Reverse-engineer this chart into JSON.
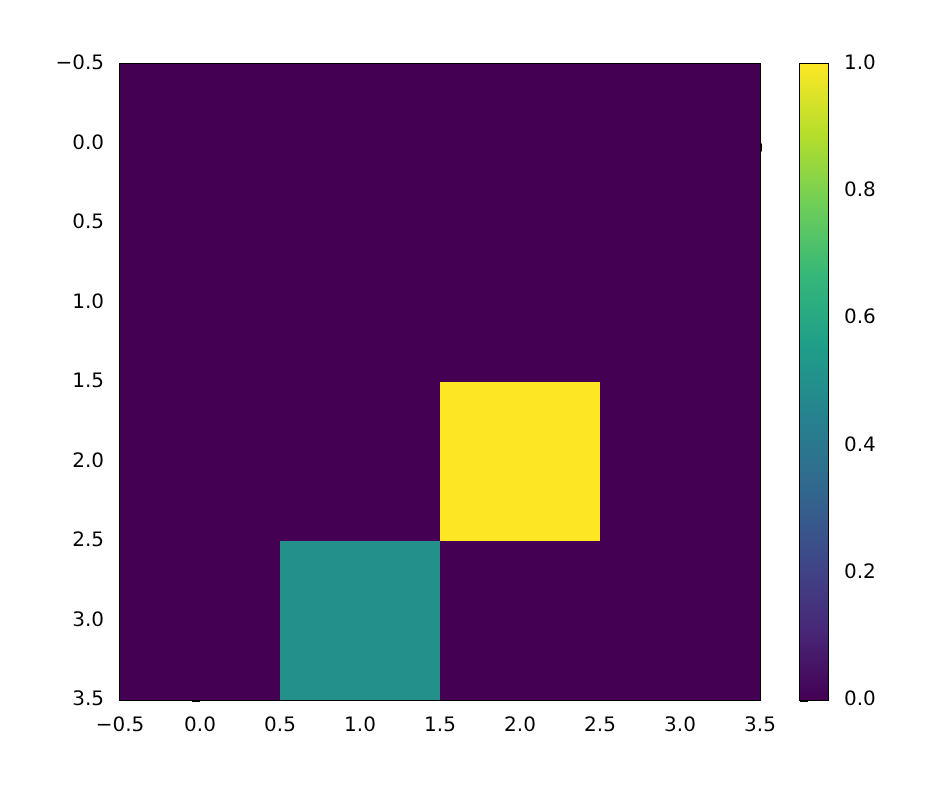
{
  "chart_data": {
    "type": "heatmap",
    "cells": [
      [
        0,
        0,
        0,
        0
      ],
      [
        0,
        0,
        0,
        0
      ],
      [
        0,
        0,
        1,
        0
      ],
      [
        0,
        0.5,
        0,
        0
      ]
    ],
    "xlim": [
      -0.5,
      3.5
    ],
    "xticks": [
      {
        "value": -0.5,
        "label": "−0.5"
      },
      {
        "value": 0,
        "label": "0.0"
      },
      {
        "value": 0.5,
        "label": "0.5"
      },
      {
        "value": 1,
        "label": "1.0"
      },
      {
        "value": 1.5,
        "label": "1.5"
      },
      {
        "value": 2,
        "label": "2.0"
      },
      {
        "value": 2.5,
        "label": "2.5"
      },
      {
        "value": 3,
        "label": "3.0"
      },
      {
        "value": 3.5,
        "label": "3.5"
      }
    ],
    "ylim": [
      3.5,
      -0.5
    ],
    "yticks": [
      {
        "value": -0.5,
        "label": "−0.5"
      },
      {
        "value": 0,
        "label": "0.0"
      },
      {
        "value": 0.5,
        "label": "0.5"
      },
      {
        "value": 1,
        "label": "1.0"
      },
      {
        "value": 1.5,
        "label": "1.5"
      },
      {
        "value": 2,
        "label": "2.0"
      },
      {
        "value": 2.5,
        "label": "2.5"
      },
      {
        "value": 3,
        "label": "3.0"
      },
      {
        "value": 3.5,
        "label": "3.5"
      }
    ],
    "clim": [
      0,
      1
    ],
    "cticks": [
      {
        "value": 0,
        "label": "0.0"
      },
      {
        "value": 0.2,
        "label": "0.2"
      },
      {
        "value": 0.4,
        "label": "0.4"
      },
      {
        "value": 0.6,
        "label": "0.6"
      },
      {
        "value": 0.8,
        "label": "0.8"
      },
      {
        "value": 1,
        "label": "1.0"
      }
    ]
  }
}
